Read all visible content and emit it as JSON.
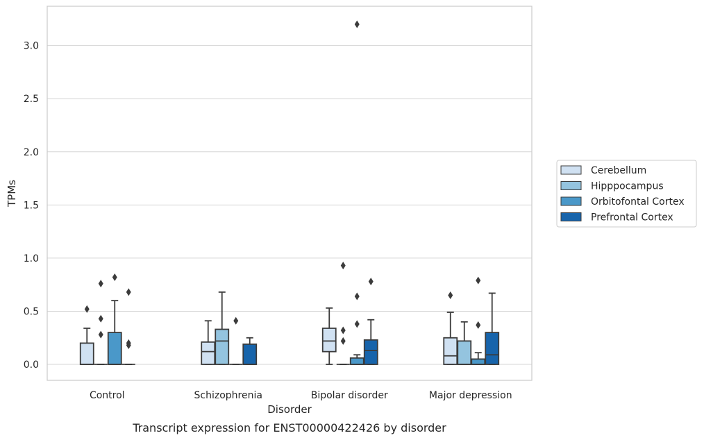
{
  "caption": "Transcript expression for ENST00000422426 by disorder",
  "chart_data": {
    "type": "box",
    "xlabel": "Disorder",
    "ylabel": "TPMs",
    "ylim": [
      -0.15,
      3.37
    ],
    "yticks": [
      0.0,
      0.5,
      1.0,
      1.5,
      2.0,
      2.5,
      3.0
    ],
    "ytick_labels": [
      "0.0",
      "0.5",
      "1.0",
      "1.5",
      "2.0",
      "2.5",
      "3.0"
    ],
    "grid": "horizontal",
    "legend_placement": "right",
    "categories": [
      "Control",
      "Schizophrenia",
      "Bipolar disorder",
      "Major depression"
    ],
    "series": [
      {
        "name": "Cerebellum",
        "color": "#d0e1f2",
        "boxes": [
          {
            "whislo": 0.0,
            "q1": 0.0,
            "med": 0.0,
            "q3": 0.2,
            "whishi": 0.34,
            "fliers": [
              0.52
            ]
          },
          {
            "whislo": 0.0,
            "q1": 0.0,
            "med": 0.12,
            "q3": 0.21,
            "whishi": 0.41,
            "fliers": []
          },
          {
            "whislo": 0.0,
            "q1": 0.12,
            "med": 0.22,
            "q3": 0.34,
            "whishi": 0.53,
            "fliers": []
          },
          {
            "whislo": 0.0,
            "q1": 0.0,
            "med": 0.08,
            "q3": 0.25,
            "whishi": 0.49,
            "fliers": [
              0.65
            ]
          }
        ]
      },
      {
        "name": "Hipppocampus",
        "color": "#94c4df",
        "boxes": [
          {
            "whislo": 0.0,
            "q1": 0.0,
            "med": 0.0,
            "q3": 0.0,
            "whishi": 0.0,
            "fliers": [
              0.28,
              0.43,
              0.76
            ]
          },
          {
            "whislo": 0.0,
            "q1": 0.0,
            "med": 0.22,
            "q3": 0.33,
            "whishi": 0.68,
            "fliers": []
          },
          {
            "whislo": 0.0,
            "q1": 0.0,
            "med": 0.0,
            "q3": 0.0,
            "whishi": 0.0,
            "fliers": [
              0.22,
              0.32,
              0.93
            ]
          },
          {
            "whislo": 0.0,
            "q1": 0.0,
            "med": 0.0,
            "q3": 0.22,
            "whishi": 0.4,
            "fliers": []
          }
        ]
      },
      {
        "name": "Orbitofontal Cortex",
        "color": "#4a98c9",
        "boxes": [
          {
            "whislo": 0.0,
            "q1": 0.0,
            "med": 0.0,
            "q3": 0.3,
            "whishi": 0.6,
            "fliers": [
              0.82
            ]
          },
          {
            "whislo": 0.0,
            "q1": 0.0,
            "med": 0.0,
            "q3": 0.0,
            "whishi": 0.0,
            "fliers": [
              0.41
            ]
          },
          {
            "whislo": 0.0,
            "q1": 0.0,
            "med": 0.0,
            "q3": 0.06,
            "whishi": 0.09,
            "fliers": [
              0.38,
              0.64,
              3.2
            ]
          },
          {
            "whislo": 0.0,
            "q1": 0.0,
            "med": 0.0,
            "q3": 0.05,
            "whishi": 0.11,
            "fliers": [
              0.37,
              0.79
            ]
          }
        ]
      },
      {
        "name": "Prefrontal Cortex",
        "color": "#1764ab",
        "boxes": [
          {
            "whislo": 0.0,
            "q1": 0.0,
            "med": 0.0,
            "q3": 0.0,
            "whishi": 0.0,
            "fliers": [
              0.18,
              0.2,
              0.68
            ]
          },
          {
            "whislo": 0.0,
            "q1": 0.0,
            "med": 0.0,
            "q3": 0.19,
            "whishi": 0.25,
            "fliers": []
          },
          {
            "whislo": 0.0,
            "q1": 0.0,
            "med": 0.13,
            "q3": 0.23,
            "whishi": 0.42,
            "fliers": [
              0.78
            ]
          },
          {
            "whislo": 0.0,
            "q1": 0.0,
            "med": 0.09,
            "q3": 0.3,
            "whishi": 0.67,
            "fliers": []
          }
        ]
      }
    ]
  }
}
